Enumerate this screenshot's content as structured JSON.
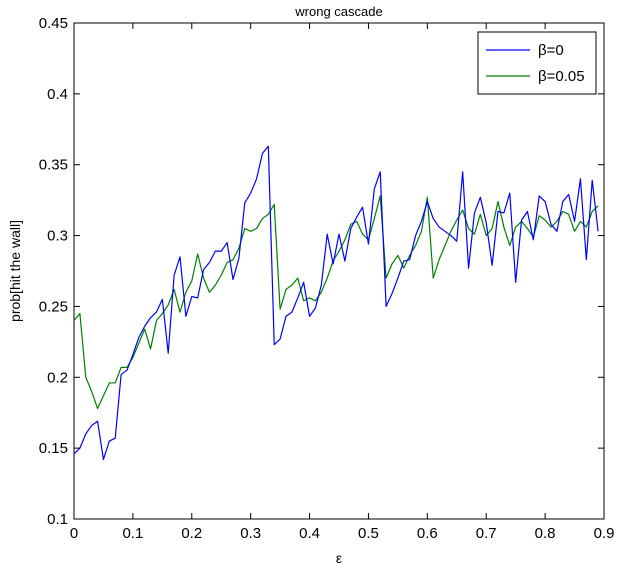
{
  "chart_data": {
    "type": "line",
    "title": "wrong cascade",
    "xlabel": "ε",
    "ylabel": "prob[hit the wall]",
    "xlim": [
      0,
      0.9
    ],
    "ylim": [
      0.1,
      0.45
    ],
    "xticks": [
      0,
      0.1,
      0.2,
      0.3,
      0.4,
      0.5,
      0.6,
      0.7,
      0.8,
      0.9
    ],
    "xtick_labels": [
      "0",
      "0.1",
      "0.2",
      "0.3",
      "0.4",
      "0.5",
      "0.6",
      "0.7",
      "0.8",
      "0.9"
    ],
    "yticks": [
      0.1,
      0.15,
      0.2,
      0.25,
      0.3,
      0.35,
      0.4,
      0.45
    ],
    "ytick_labels": [
      "0.1",
      "0.15",
      "0.2",
      "0.25",
      "0.3",
      "0.35",
      "0.4",
      "0.45"
    ],
    "grid": false,
    "legend_position": "top-right",
    "x": [
      0,
      0.01,
      0.02,
      0.03,
      0.04,
      0.05,
      0.06,
      0.07,
      0.08,
      0.09,
      0.1,
      0.11,
      0.12,
      0.13,
      0.14,
      0.15,
      0.16,
      0.17,
      0.18,
      0.19,
      0.2,
      0.21,
      0.22,
      0.23,
      0.24,
      0.25,
      0.26,
      0.27,
      0.28,
      0.29,
      0.3,
      0.31,
      0.32,
      0.33,
      0.34,
      0.35,
      0.36,
      0.37,
      0.38,
      0.39,
      0.4,
      0.41,
      0.42,
      0.43,
      0.44,
      0.45,
      0.46,
      0.47,
      0.48,
      0.49,
      0.5,
      0.51,
      0.52,
      0.53,
      0.54,
      0.55,
      0.56,
      0.57,
      0.58,
      0.59,
      0.6,
      0.61,
      0.62,
      0.63,
      0.64,
      0.65,
      0.66,
      0.67,
      0.68,
      0.69,
      0.7,
      0.71,
      0.72,
      0.73,
      0.74,
      0.75,
      0.76,
      0.77,
      0.78,
      0.79,
      0.8,
      0.81,
      0.82,
      0.83,
      0.84,
      0.85,
      0.86,
      0.87,
      0.88,
      0.89
    ],
    "series": [
      {
        "name": "β=0",
        "color": "#0000ff",
        "values": [
          0.146,
          0.15,
          0.16,
          0.166,
          0.169,
          0.142,
          0.155,
          0.157,
          0.202,
          0.205,
          0.216,
          0.228,
          0.236,
          0.242,
          0.246,
          0.255,
          0.217,
          0.272,
          0.285,
          0.243,
          0.257,
          0.256,
          0.276,
          0.281,
          0.289,
          0.289,
          0.295,
          0.269,
          0.284,
          0.323,
          0.33,
          0.34,
          0.358,
          0.363,
          0.223,
          0.227,
          0.243,
          0.246,
          0.256,
          0.267,
          0.243,
          0.249,
          0.265,
          0.301,
          0.28,
          0.301,
          0.282,
          0.305,
          0.313,
          0.32,
          0.294,
          0.333,
          0.345,
          0.25,
          0.259,
          0.27,
          0.282,
          0.283,
          0.3,
          0.31,
          0.324,
          0.312,
          0.306,
          0.303,
          0.3,
          0.296,
          0.345,
          0.277,
          0.316,
          0.327,
          0.309,
          0.279,
          0.317,
          0.316,
          0.33,
          0.267,
          0.311,
          0.317,
          0.297,
          0.328,
          0.324,
          0.308,
          0.303,
          0.324,
          0.329,
          0.31,
          0.34,
          0.283,
          0.339,
          0.303
        ],
        "values_note": "",
        "draw_values": [
          0.146,
          0.15,
          0.16,
          0.166,
          0.169,
          0.142,
          0.155,
          0.157,
          0.202,
          0.205,
          0.216,
          0.228,
          0.236,
          0.242,
          0.246,
          0.255,
          0.217,
          0.272,
          0.285,
          0.243,
          0.257,
          0.256,
          0.276,
          0.281,
          0.289,
          0.289,
          0.295,
          0.269,
          0.284,
          0.323,
          0.33,
          0.34,
          0.358,
          0.363,
          0.223,
          0.227,
          0.243,
          0.246,
          0.256,
          0.267,
          0.243,
          0.249,
          0.265,
          0.301,
          0.28,
          0.301,
          0.282,
          0.305,
          0.313,
          0.32,
          0.294,
          0.333,
          0.345,
          0.25,
          0.259,
          0.27,
          0.282,
          0.283,
          0.3,
          0.31,
          0.324,
          0.312,
          0.306,
          0.303,
          0.3,
          0.296,
          0.345,
          0.277,
          0.316,
          0.327,
          0.309,
          0.279,
          0.317,
          0.316,
          0.33,
          0.267,
          0.311,
          0.317,
          0.297,
          0.328,
          0.324,
          0.308,
          0.303,
          0.324,
          0.329,
          0.31,
          0.34,
          0.283,
          0.339,
          0.303
        ]
      },
      {
        "name": "β=0.05",
        "color": "#008000",
        "values": [
          0.24,
          0.245,
          0.2,
          0.19,
          0.178,
          0.187,
          0.196,
          0.196,
          0.207,
          0.207,
          0.214,
          0.224,
          0.234,
          0.22,
          0.24,
          0.245,
          0.251,
          0.262,
          0.246,
          0.26,
          0.268,
          0.287,
          0.27,
          0.26,
          0.265,
          0.272,
          0.281,
          0.283,
          0.291,
          0.305,
          0.303,
          0.305,
          0.312,
          0.315,
          0.322,
          0.248,
          0.262,
          0.265,
          0.27,
          0.254,
          0.256,
          0.254,
          0.26,
          0.27,
          0.282,
          0.289,
          0.297,
          0.308,
          0.31,
          0.301,
          0.297,
          0.312,
          0.328,
          0.27,
          0.28,
          0.286,
          0.277,
          0.286,
          0.293,
          0.303,
          0.327,
          0.27,
          0.283,
          0.293,
          0.303,
          0.311,
          0.318,
          0.305,
          0.301,
          0.315,
          0.3,
          0.305,
          0.324,
          0.306,
          0.293,
          0.306,
          0.31,
          0.305,
          0.299,
          0.314,
          0.311,
          0.306,
          0.31,
          0.317,
          0.315,
          0.303,
          0.31,
          0.306,
          0.317,
          0.321
        ]
      }
    ]
  }
}
